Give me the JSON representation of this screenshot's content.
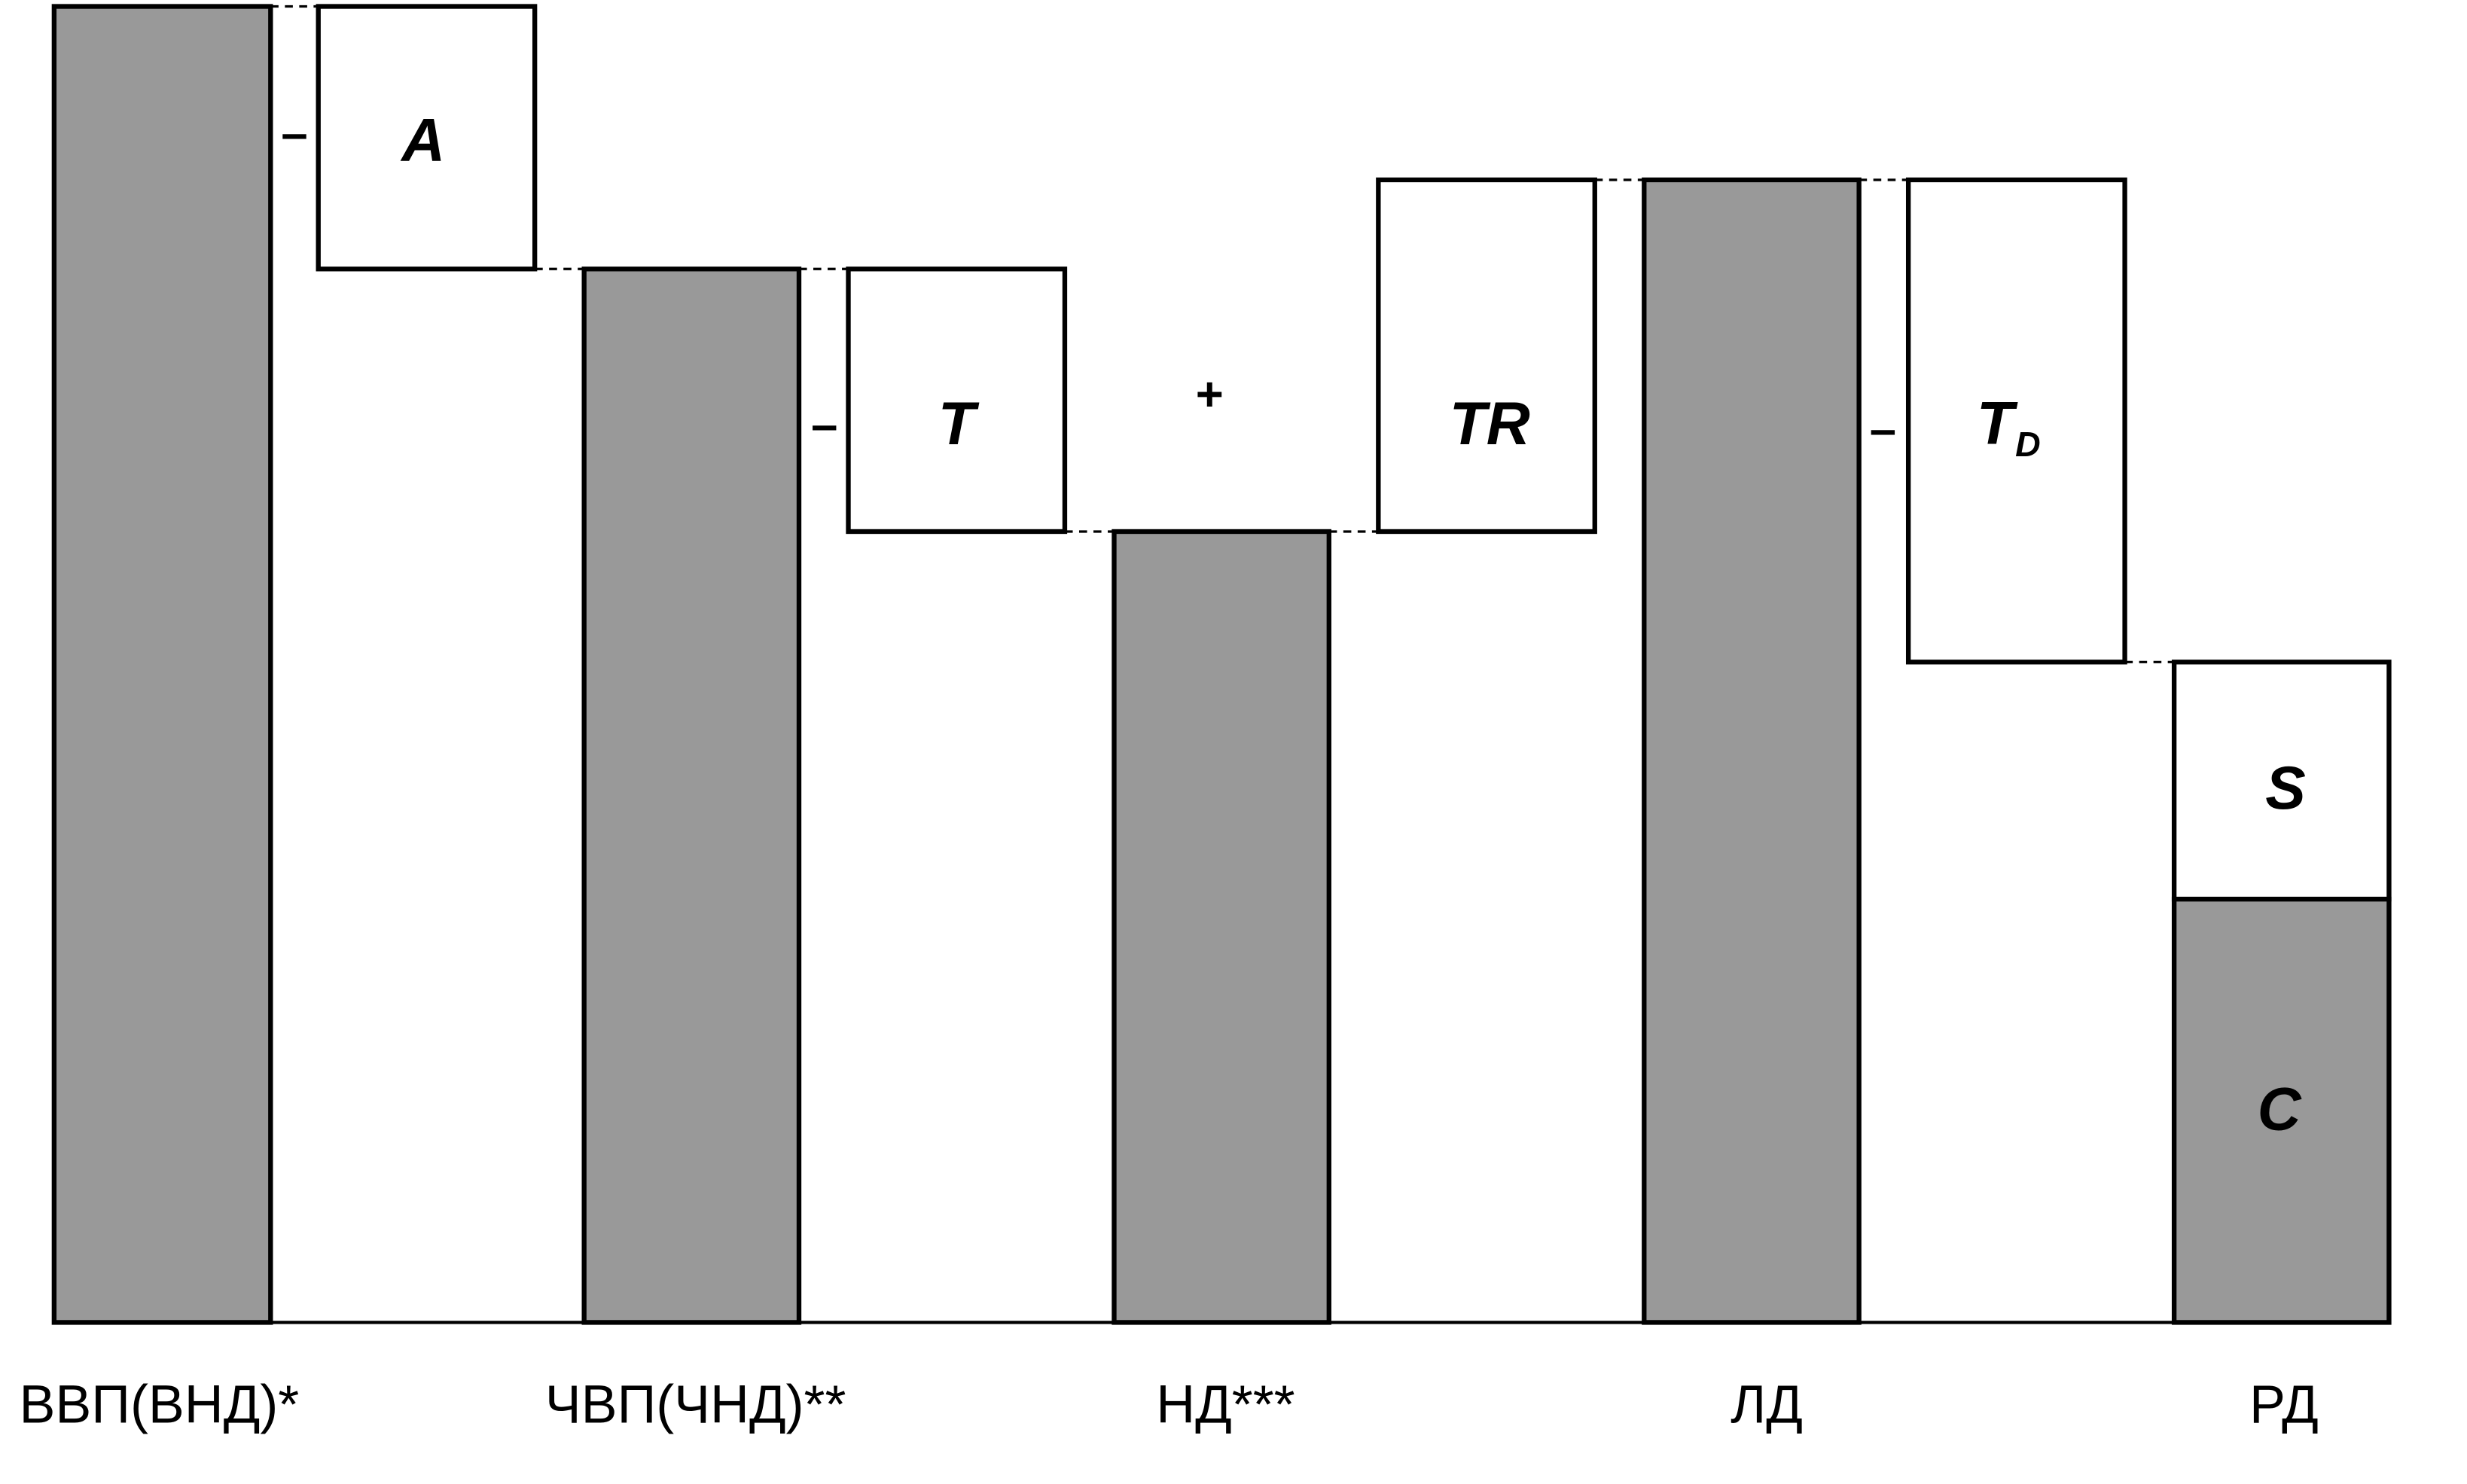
{
  "bars": [
    {
      "label": "ВВП(ВНД)*"
    },
    {
      "label": "ЧВП(ЧНД)**"
    },
    {
      "label": "НД***"
    },
    {
      "label": "ЛД"
    },
    {
      "label": "РД",
      "parts": [
        "S",
        "C"
      ]
    }
  ],
  "boxes": [
    {
      "operator": "–",
      "symbol": "A"
    },
    {
      "operator": "–",
      "symbol": "T"
    },
    {
      "operator": "+",
      "symbol": "TR"
    },
    {
      "operator": "–",
      "symbol": "T",
      "subscript": "D"
    }
  ]
}
